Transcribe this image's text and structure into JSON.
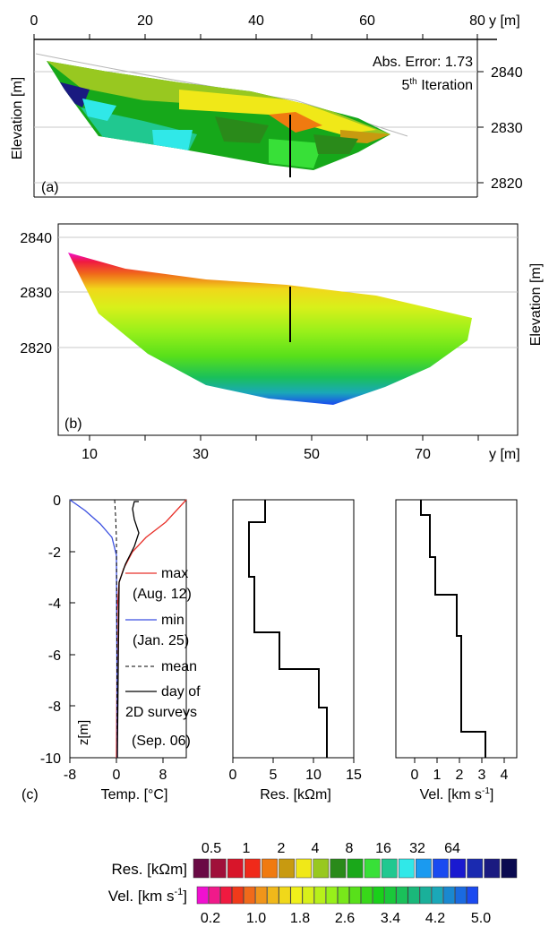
{
  "panel_a": {
    "label": "(a)",
    "x_ticks": [
      "0",
      "20",
      "40",
      "60",
      "80"
    ],
    "x_unit": "y [m]",
    "y_ticks": [
      "2840",
      "2830",
      "2820"
    ],
    "y_label": "Elevation [m]",
    "abs_error": "Abs. Error: 1.73",
    "iteration_num": "5",
    "iteration_sup": "th",
    "iteration_word": "Iteration"
  },
  "panel_b": {
    "label": "(b)",
    "x_ticks": [
      "10",
      "30",
      "50",
      "70"
    ],
    "x_unit": "y [m]",
    "y_ticks": [
      "2840",
      "2830",
      "2820"
    ],
    "y_label": "Elevation [m]"
  },
  "panel_c": {
    "label": "(c)",
    "z_label": "z[m]",
    "z_ticks": [
      "0",
      "-2",
      "-4",
      "-6",
      "-8",
      "-10"
    ],
    "temp": {
      "xlabel": "Temp. [°C]",
      "x_ticks": [
        "-8",
        "0",
        "8"
      ],
      "legend": {
        "max": "max",
        "max_date": "(Aug. 12)",
        "min": "min",
        "min_date": "(Jan. 25)",
        "mean": "mean",
        "day1": "day of",
        "day2": "2D surveys",
        "day3": "(Sep. 06)"
      },
      "colors": {
        "max": "#e8312a",
        "min": "#3a4fe0",
        "mean": "#000000",
        "day": "#000000"
      }
    },
    "res": {
      "xlabel": "Res. [kΩm]",
      "x_ticks": [
        "0",
        "5",
        "10",
        "15"
      ]
    },
    "vel": {
      "xlabel_main": "Vel. [km s",
      "xlabel_sup": "-1",
      "xlabel_end": "]",
      "x_ticks": [
        "0",
        "1",
        "2",
        "3",
        "4"
      ]
    }
  },
  "colorbars": {
    "res_label": "Res. [kΩm]",
    "res_ticks": [
      "0.5",
      "1",
      "2",
      "4",
      "8",
      "16",
      "32",
      "64"
    ],
    "res_colors": [
      "#6a0a45",
      "#a0103a",
      "#d8152a",
      "#f02a1a",
      "#f07a10",
      "#c89a10",
      "#f0e818",
      "#98c820",
      "#2a8a1a",
      "#1aa81a",
      "#38e038",
      "#20c890",
      "#30e8e8",
      "#1a9af0",
      "#1a4af0",
      "#1a1ad0",
      "#1a2ab0",
      "#1a1a80",
      "#0a0a50"
    ],
    "vel_label_main": "Vel. [km s",
    "vel_label_sup": "-1",
    "vel_label_end": "]",
    "vel_ticks": [
      "0.2",
      "1.0",
      "1.8",
      "2.6",
      "3.4",
      "4.2",
      "5.0"
    ],
    "vel_colors": [
      "#f010d0",
      "#f01a8a",
      "#f01a40",
      "#f03a1a",
      "#f06a1a",
      "#f0951a",
      "#f0b81a",
      "#f0d81a",
      "#f0f01a",
      "#d8f01a",
      "#b8f01a",
      "#98f01a",
      "#78e81a",
      "#58e01a",
      "#38d81a",
      "#1ad01a",
      "#1ac83a",
      "#1ac05a",
      "#1ab87a",
      "#1ab09a",
      "#1aa8b8",
      "#1a88d0",
      "#1a6ae0",
      "#1a4af0"
    ]
  }
}
